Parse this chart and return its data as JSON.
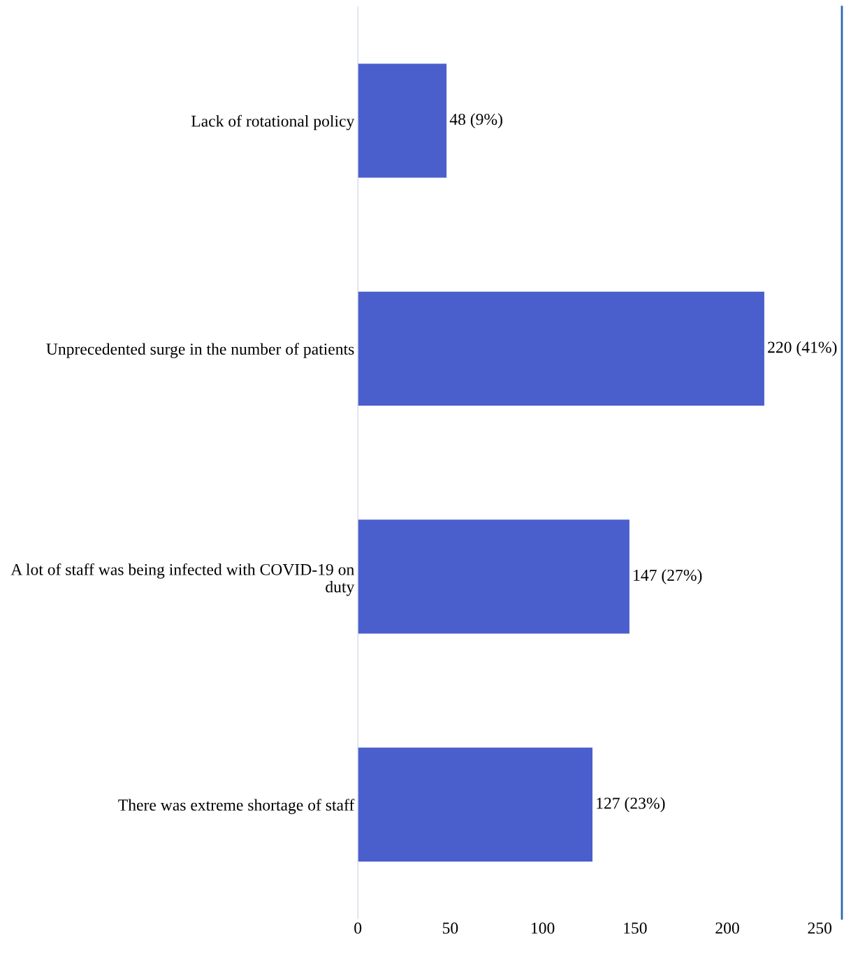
{
  "chart_data": {
    "type": "bar",
    "orientation": "horizontal",
    "categories": [
      "Lack of rotational policy",
      "Unprecedented surge in the number of patients",
      "A lot of staff was being infected with COVID-19 on\nduty",
      "There was extreme shortage of staff"
    ],
    "values": [
      48,
      220,
      147,
      127
    ],
    "color": "#4a5fcc",
    "value_labels": [
      "48 (9%)",
      "220 (41%)",
      "147 (27%)",
      "127 (23%)"
    ],
    "xlim": [
      0,
      262
    ],
    "xticks": [
      0,
      50,
      100,
      150,
      200,
      250
    ],
    "grid": false,
    "legend": false
  }
}
